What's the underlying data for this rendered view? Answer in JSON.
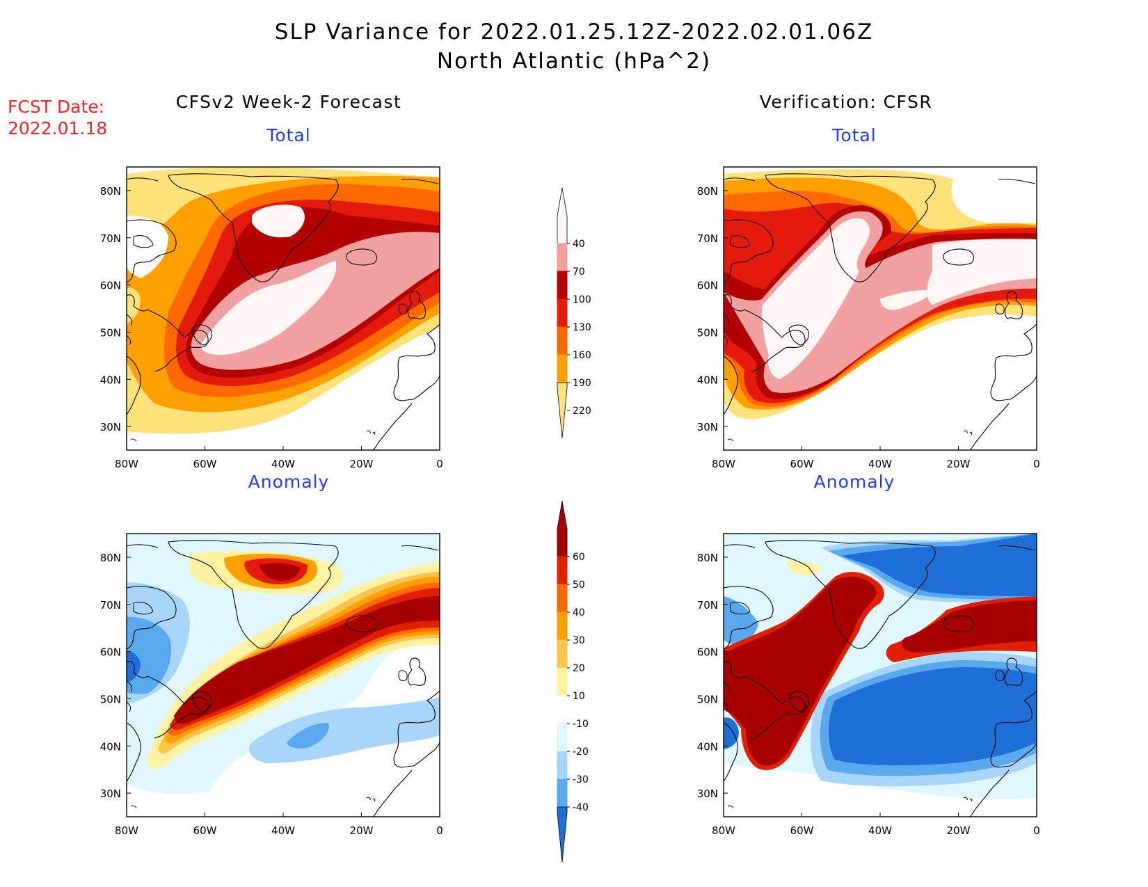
{
  "header": {
    "title": "SLP Variance for 2022.01.25.12Z-2022.02.01.06Z",
    "subtitle": "North Atlantic (hPa^2)",
    "fcst_label": "FCST Date:",
    "fcst_date": "2022.01.18"
  },
  "columns": {
    "left": "CFSv2 Week-2 Forecast",
    "right": "Verification: CFSR"
  },
  "panels": {
    "forecast_total": "Total",
    "verification_total": "Total",
    "forecast_anomaly": "Anomaly",
    "verification_anomaly": "Anomaly"
  },
  "axes": {
    "lon_labels": [
      "80W",
      "60W",
      "40W",
      "20W",
      "0"
    ],
    "lat_labels": [
      "80N",
      "70N",
      "60N",
      "50N",
      "40N",
      "30N"
    ],
    "lon_values": [
      -80,
      -60,
      -40,
      -20,
      0
    ],
    "lat_values": [
      80,
      70,
      60,
      50,
      40,
      30
    ],
    "lon_range": [
      -80,
      0
    ],
    "lat_range": [
      25,
      85
    ]
  },
  "colorbars": {
    "total": {
      "levels": [
        "40",
        "70",
        "100",
        "130",
        "160",
        "190",
        "220"
      ],
      "colors": [
        "#fff6f6",
        "#f2a1a1",
        "#b30000",
        "#e31a0c",
        "#ff6a00",
        "#ffa000",
        "#ffe27a"
      ]
    },
    "anomaly": {
      "levels": [
        "60",
        "50",
        "40",
        "30",
        "20",
        "10",
        "-10",
        "-20",
        "-30",
        "-40"
      ],
      "colors": [
        "#a80000",
        "#e02000",
        "#ff6a00",
        "#ffa000",
        "#ffc24a",
        "#fff2a0",
        "#ffffff",
        "#dff7fd",
        "#a8d6fb",
        "#5aa8ee",
        "#1f6fd9"
      ]
    }
  },
  "colors": {
    "fcst_text": "#ff2020",
    "panel_title": "#1c3cff",
    "coast": "#000000"
  }
}
